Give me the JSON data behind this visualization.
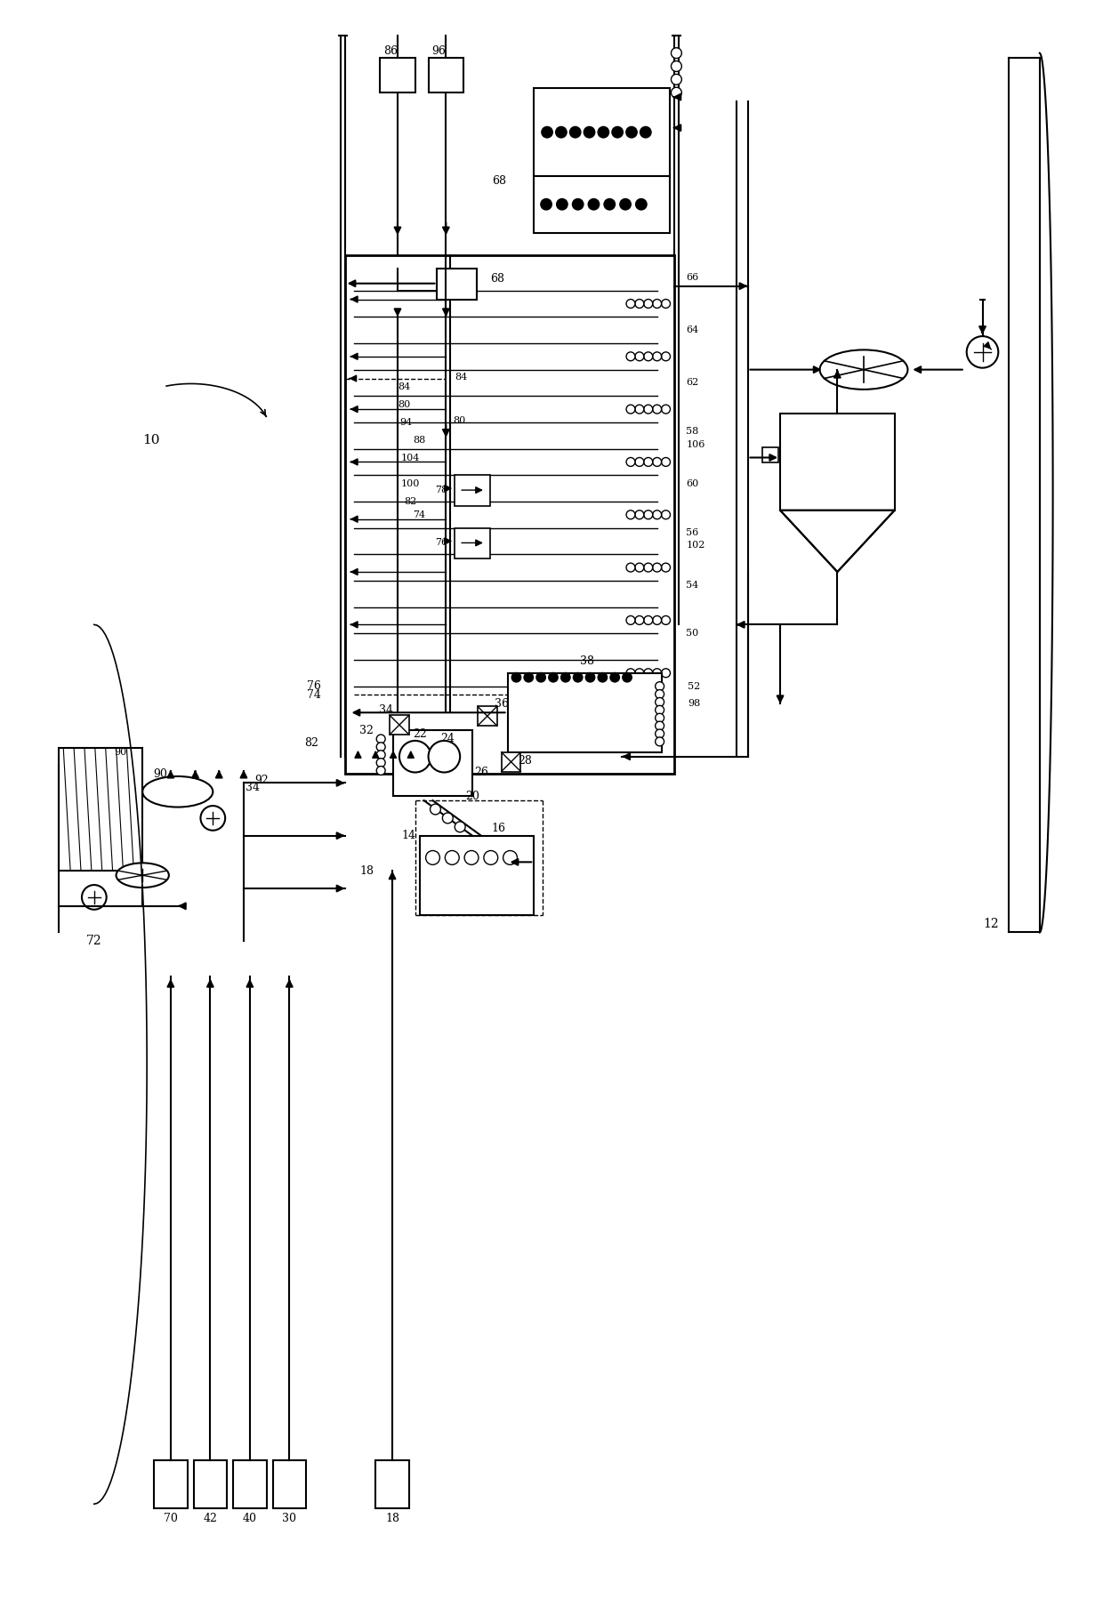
{
  "bg_color": "#ffffff",
  "line_color": "#000000",
  "fig_width": 12.4,
  "fig_height": 18.25,
  "dpi": 100
}
